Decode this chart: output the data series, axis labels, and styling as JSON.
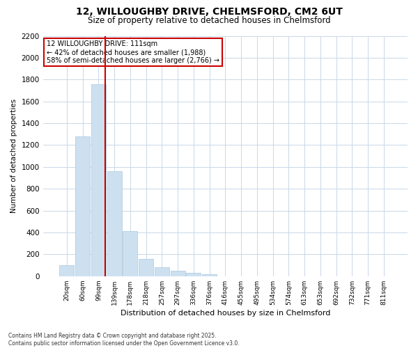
{
  "title_line1": "12, WILLOUGHBY DRIVE, CHELMSFORD, CM2 6UT",
  "title_line2": "Size of property relative to detached houses in Chelmsford",
  "xlabel": "Distribution of detached houses by size in Chelmsford",
  "ylabel": "Number of detached properties",
  "categories": [
    "20sqm",
    "60sqm",
    "99sqm",
    "139sqm",
    "178sqm",
    "218sqm",
    "257sqm",
    "297sqm",
    "336sqm",
    "376sqm",
    "416sqm",
    "455sqm",
    "495sqm",
    "534sqm",
    "574sqm",
    "613sqm",
    "653sqm",
    "692sqm",
    "732sqm",
    "771sqm",
    "811sqm"
  ],
  "values": [
    100,
    1280,
    1760,
    960,
    410,
    155,
    80,
    50,
    30,
    20,
    0,
    0,
    0,
    0,
    0,
    0,
    0,
    0,
    0,
    0,
    0
  ],
  "bar_color": "#cce0f0",
  "bar_edgecolor": "#aac8e0",
  "vline_color": "#cc0000",
  "vline_x_offset": 0.42,
  "annotation_text": "12 WILLOUGHBY DRIVE: 111sqm\n← 42% of detached houses are smaller (1,988)\n58% of semi-detached houses are larger (2,766) →",
  "annotation_box_edgecolor": "#cc0000",
  "ylim": [
    0,
    2200
  ],
  "yticks": [
    0,
    200,
    400,
    600,
    800,
    1000,
    1200,
    1400,
    1600,
    1800,
    2000,
    2200
  ],
  "background_color": "#ffffff",
  "grid_color": "#c8d8e8",
  "footnote": "Contains HM Land Registry data © Crown copyright and database right 2025.\nContains public sector information licensed under the Open Government Licence v3.0."
}
